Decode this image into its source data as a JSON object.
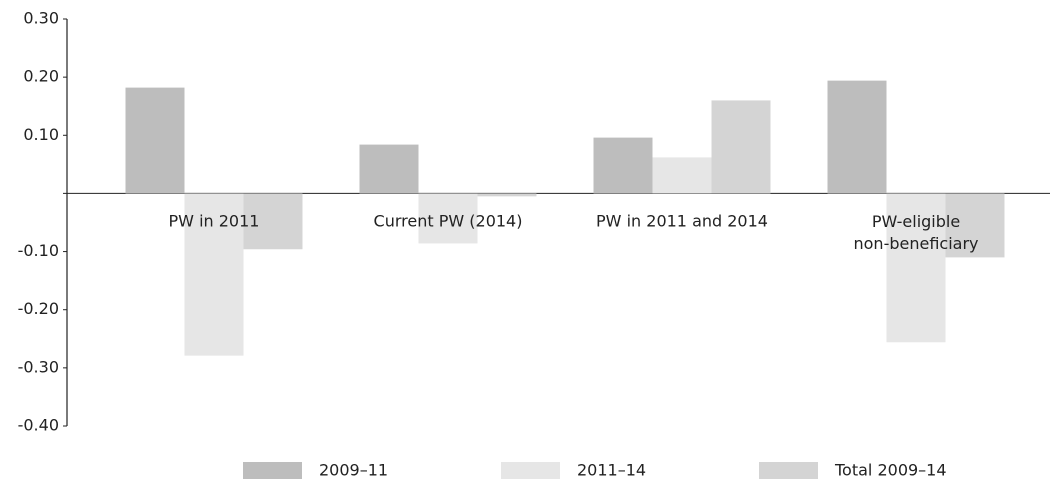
{
  "chart_data": {
    "type": "bar",
    "categories": [
      "PW in 2011",
      "Current PW (2014)",
      "PW in 2011 and 2014",
      "PW-eligible non-beneficiary"
    ],
    "series": [
      {
        "name": "2009–11",
        "color": "#bdbdbd",
        "values": [
          0.182,
          0.084,
          0.096,
          0.194
        ]
      },
      {
        "name": "2011–14",
        "color": "#e6e6e6",
        "values": [
          -0.279,
          -0.086,
          0.062,
          -0.256
        ]
      },
      {
        "name": "Total 2009–14",
        "color": "#d4d4d4",
        "values": [
          -0.096,
          -0.005,
          0.16,
          -0.11
        ]
      }
    ],
    "ylim": [
      -0.4,
      0.3
    ],
    "yticks": [
      {
        "value": -0.4,
        "label": "-0.40"
      },
      {
        "value": -0.3,
        "label": "-0.30"
      },
      {
        "value": -0.2,
        "label": "-0.20"
      },
      {
        "value": -0.1,
        "label": "-0.10"
      },
      {
        "value": 0.1,
        "label": "0.10"
      },
      {
        "value": 0.2,
        "label": "0.20"
      },
      {
        "value": 0.3,
        "label": "0.30"
      }
    ],
    "grid": false,
    "legend": "bottom"
  }
}
